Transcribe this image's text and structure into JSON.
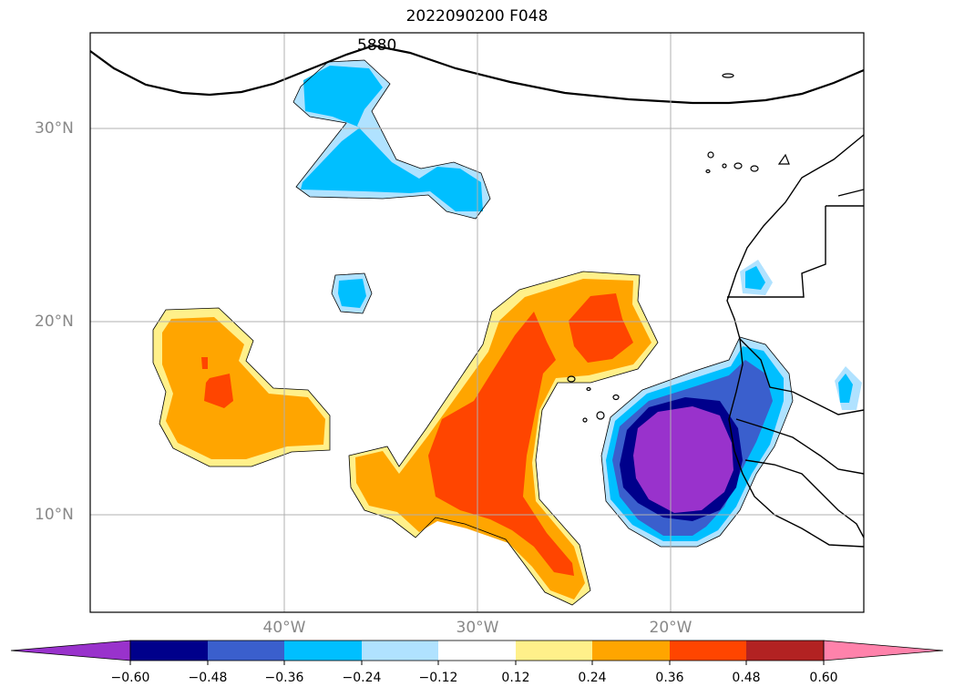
{
  "title": "2022090200 F048",
  "map": {
    "lat_labels": [
      "30°N",
      "20°N",
      "10°N"
    ],
    "lon_labels": [
      "40°W",
      "30°W",
      "20°W"
    ],
    "contour_label": "5880",
    "extent": {
      "lon": [
        -50,
        -10
      ],
      "lat": [
        5,
        35
      ]
    }
  },
  "colorbar": {
    "ticks": [
      "−0.60",
      "−0.48",
      "−0.36",
      "−0.24",
      "−0.12",
      "0.12",
      "0.24",
      "0.36",
      "0.48",
      "0.60"
    ],
    "colors": [
      "#9932cc",
      "#00008b",
      "#3a5fcd",
      "#00bfff",
      "#b0e2ff",
      "#ffffff",
      "#fff08a",
      "#ffa500",
      "#ff4500",
      "#b22222",
      "#ff82ab"
    ]
  }
}
